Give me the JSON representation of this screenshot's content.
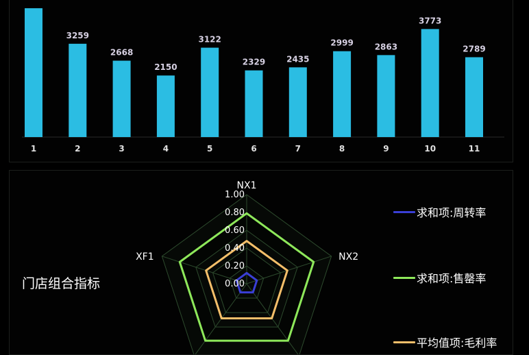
{
  "chart_data": [
    {
      "type": "bar",
      "categories": [
        "1",
        "2",
        "3",
        "4",
        "5",
        "6",
        "7",
        "8",
        "9",
        "10",
        "11"
      ],
      "values": [
        4500,
        3259,
        2668,
        2150,
        3122,
        2329,
        2435,
        2999,
        2863,
        3773,
        2789
      ],
      "data_labels": [
        "",
        "3259",
        "2668",
        "2150",
        "3122",
        "2329",
        "2435",
        "2999",
        "2863",
        "3773",
        "2789"
      ],
      "ylim": [
        0,
        4500
      ],
      "colors": {
        "bar": "#2bbde3",
        "label": "#d6d0e2",
        "axis": "#2a2a2a"
      }
    },
    {
      "type": "radar",
      "title": "门店组合指标",
      "indicators": [
        "NX1",
        "NX2",
        "",
        "",
        "XF1"
      ],
      "ticks": [
        "1.00",
        "0.80",
        "0.60",
        "0.40",
        "0.20",
        "0.00"
      ],
      "rlim": [
        0,
        1
      ],
      "series": [
        {
          "name": "求和项:周转率",
          "values": [
            0.12,
            0.12,
            0.12,
            0.12,
            0.12
          ],
          "color": "#3a3fd6"
        },
        {
          "name": "求和项:售罄率",
          "values": [
            0.79,
            0.79,
            0.79,
            0.79,
            0.79
          ],
          "color": "#8ee85a"
        },
        {
          "name": "平均值项:毛利率",
          "values": [
            0.48,
            0.48,
            0.48,
            0.48,
            0.48
          ],
          "color": "#f5bf6a"
        }
      ]
    }
  ]
}
